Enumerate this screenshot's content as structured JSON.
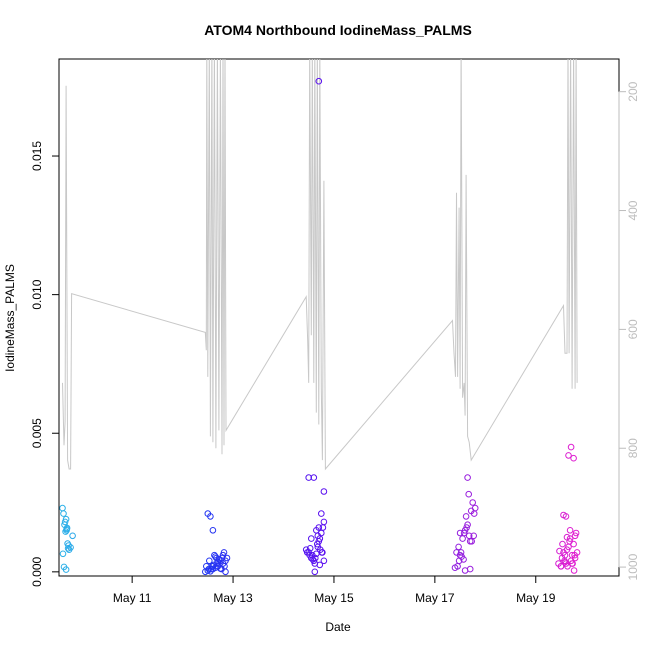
{
  "chart_data": {
    "type": "scatter",
    "title": "ATOM4 Northbound IodineMass_PALMS",
    "xlabel": "Date",
    "ylabel": "IodineMass_PALMS",
    "xlim": [
      9.55,
      20.65
    ],
    "ylim": [
      -0.00015,
      0.0185
    ],
    "x_ticks": [
      {
        "value": 11,
        "label": "May 11"
      },
      {
        "value": 13,
        "label": "May 13"
      },
      {
        "value": 15,
        "label": "May 15"
      },
      {
        "value": 17,
        "label": "May 17"
      },
      {
        "value": 19,
        "label": "May 19"
      }
    ],
    "y_ticks": [
      {
        "value": 0.0,
        "label": "0.000"
      },
      {
        "value": 0.005,
        "label": "0.005"
      },
      {
        "value": 0.01,
        "label": "0.010"
      },
      {
        "value": 0.015,
        "label": "0.015"
      }
    ],
    "y2lim": [
      1015,
      145
    ],
    "y2_ticks": [
      {
        "value": 200,
        "label": "200"
      },
      {
        "value": 400,
        "label": "400"
      },
      {
        "value": 600,
        "label": "600"
      },
      {
        "value": 800,
        "label": "800"
      },
      {
        "value": 1000,
        "label": "1000"
      }
    ],
    "colors": {
      "pressure_line": "#c8c8c8",
      "point_gradient": [
        "#2cb2e8",
        "#1a3cf2",
        "#5a10f0",
        "#8c1ee0",
        "#e21ed0"
      ]
    },
    "flights": [
      {
        "x": [
          9.62,
          9.64,
          9.66,
          9.67,
          9.68,
          9.69,
          9.7,
          9.7,
          9.71,
          9.72,
          9.73,
          9.74,
          9.75,
          9.78,
          9.82,
          9.63,
          9.65,
          9.69
        ],
        "y": [
          0.0023,
          0.0021,
          0.0017,
          0.0018,
          0.00145,
          0.0019,
          0.0015,
          0.00155,
          0.00158,
          0.00102,
          0.00085,
          0.00095,
          0.0008,
          0.00088,
          0.0013,
          0.00065,
          0.00018,
          8e-05
        ]
      },
      {
        "x": [
          12.45,
          12.5,
          12.52,
          12.55,
          12.58,
          12.6,
          12.62,
          12.65,
          12.68,
          12.7,
          12.72,
          12.75,
          12.78,
          12.8,
          12.82,
          12.85,
          12.47,
          12.53,
          12.57,
          12.63,
          12.67,
          12.73,
          12.77,
          12.83,
          12.5,
          12.55,
          12.6,
          12.65,
          12.7,
          12.75,
          12.8,
          12.85,
          12.88,
          12.6
        ],
        "y": [
          0.0,
          5e-05,
          0.0001,
          2e-05,
          0.0002,
          0.0001,
          0.00025,
          0.00015,
          0.0003,
          0.0002,
          0.00045,
          0.0004,
          0.0005,
          0.0006,
          0.0007,
          0.0004,
          0.0002,
          0.0004,
          0.0001,
          0.0006,
          0.0005,
          0.0003,
          0.0001,
          0.0002,
          0.0021,
          0.002,
          0.0015,
          0.00055,
          0.00035,
          0.00012,
          0.0003,
          0.0,
          0.0005,
          0.0002
        ]
      },
      {
        "x": [
          14.45,
          14.5,
          14.52,
          14.55,
          14.58,
          14.6,
          14.62,
          14.65,
          14.68,
          14.7,
          14.72,
          14.75,
          14.78,
          14.8,
          14.47,
          14.53,
          14.57,
          14.63,
          14.67,
          14.73,
          14.77,
          14.8,
          14.6,
          14.65,
          14.68,
          14.7,
          14.75,
          14.8,
          14.5,
          14.55,
          14.62,
          14.72,
          14.76,
          14.7
        ],
        "y": [
          0.0008,
          0.0007,
          0.0006,
          0.0005,
          0.00045,
          0.0004,
          0.0003,
          0.00065,
          0.0009,
          0.0011,
          0.0012,
          0.0014,
          0.0016,
          0.0018,
          0.0007,
          0.00085,
          0.0006,
          0.0005,
          0.001,
          0.0008,
          0.0007,
          0.0004,
          0.0034,
          0.0015,
          0.0013,
          0.0016,
          0.0021,
          0.0029,
          0.0034,
          0.0012,
          0.0,
          0.00025,
          0.0007,
          0.0177
        ]
      },
      {
        "x": [
          17.4,
          17.45,
          17.48,
          17.5,
          17.52,
          17.55,
          17.58,
          17.6,
          17.62,
          17.65,
          17.68,
          17.7,
          17.72,
          17.75,
          17.78,
          17.8,
          17.43,
          17.47,
          17.53,
          17.57,
          17.63,
          17.67,
          17.73,
          17.77,
          17.5,
          17.6,
          17.65,
          17.7
        ],
        "y": [
          0.00015,
          0.0002,
          0.0004,
          0.0006,
          0.0007,
          0.0012,
          0.0014,
          0.0015,
          0.002,
          0.0017,
          0.0013,
          0.0011,
          0.0022,
          0.0025,
          0.0021,
          0.0023,
          0.0007,
          0.0009,
          0.00055,
          0.00045,
          0.0016,
          0.0028,
          0.0011,
          0.0013,
          0.0014,
          5e-05,
          0.0034,
          0.0001
        ]
      },
      {
        "x": [
          19.45,
          19.5,
          19.52,
          19.55,
          19.58,
          19.6,
          19.62,
          19.65,
          19.68,
          19.7,
          19.72,
          19.75,
          19.78,
          19.8,
          19.47,
          19.53,
          19.57,
          19.63,
          19.67,
          19.73,
          19.77,
          19.82,
          19.6,
          19.65,
          19.7,
          19.75,
          19.55,
          19.62,
          19.68,
          19.72,
          19.78,
          19.5,
          19.58,
          19.76
        ],
        "y": [
          0.0003,
          0.0002,
          0.0005,
          0.0007,
          0.0006,
          0.0003,
          0.0008,
          0.0009,
          0.0012,
          0.0004,
          0.0003,
          0.001,
          0.0013,
          0.0014,
          0.00075,
          0.001,
          0.0004,
          0.0002,
          0.0011,
          0.0003,
          0.0006,
          0.0007,
          0.002,
          0.0042,
          0.0045,
          0.0041,
          0.00205,
          0.00125,
          0.0015,
          0.0006,
          0.0005,
          0.0002,
          0.00035,
          5e-05
        ]
      }
    ],
    "pressure_series": {
      "name": "",
      "points": [
        [
          9.62,
          690
        ],
        [
          9.65,
          795
        ],
        [
          9.67,
          755
        ],
        [
          9.69,
          190
        ],
        [
          9.72,
          820
        ],
        [
          9.75,
          835
        ],
        [
          9.78,
          835
        ],
        [
          9.8,
          540
        ],
        [
          12.45,
          605
        ],
        [
          12.47,
          635
        ],
        [
          12.48,
          115
        ],
        [
          12.5,
          680
        ],
        [
          12.53,
          115
        ],
        [
          12.55,
          780
        ],
        [
          12.58,
          115
        ],
        [
          12.6,
          790
        ],
        [
          12.63,
          115
        ],
        [
          12.66,
          800
        ],
        [
          12.69,
          115
        ],
        [
          12.72,
          770
        ],
        [
          12.75,
          115
        ],
        [
          12.78,
          810
        ],
        [
          12.8,
          115
        ],
        [
          12.82,
          795
        ],
        [
          12.84,
          115
        ],
        [
          12.86,
          770
        ],
        [
          14.45,
          545
        ],
        [
          14.48,
          620
        ],
        [
          14.5,
          690
        ],
        [
          14.52,
          120
        ],
        [
          14.55,
          610
        ],
        [
          14.57,
          120
        ],
        [
          14.6,
          690
        ],
        [
          14.62,
          120
        ],
        [
          14.65,
          740
        ],
        [
          14.67,
          120
        ],
        [
          14.7,
          760
        ],
        [
          14.72,
          120
        ],
        [
          14.75,
          700
        ],
        [
          14.77,
          820
        ],
        [
          14.8,
          350
        ],
        [
          14.83,
          835
        ],
        [
          17.35,
          585
        ],
        [
          17.38,
          640
        ],
        [
          17.41,
          680
        ],
        [
          17.43,
          370
        ],
        [
          17.45,
          680
        ],
        [
          17.48,
          395
        ],
        [
          17.5,
          700
        ],
        [
          17.52,
          120
        ],
        [
          17.55,
          715
        ],
        [
          17.58,
          690
        ],
        [
          17.6,
          745
        ],
        [
          17.62,
          340
        ],
        [
          17.65,
          780
        ],
        [
          17.68,
          790
        ],
        [
          17.72,
          820
        ],
        [
          19.55,
          560
        ],
        [
          19.58,
          640
        ],
        [
          19.62,
          640
        ],
        [
          19.64,
          120
        ],
        [
          19.66,
          640
        ],
        [
          19.69,
          120
        ],
        [
          19.72,
          700
        ],
        [
          19.75,
          120
        ],
        [
          19.78,
          700
        ],
        [
          19.8,
          120
        ],
        [
          19.82,
          690
        ]
      ]
    }
  }
}
